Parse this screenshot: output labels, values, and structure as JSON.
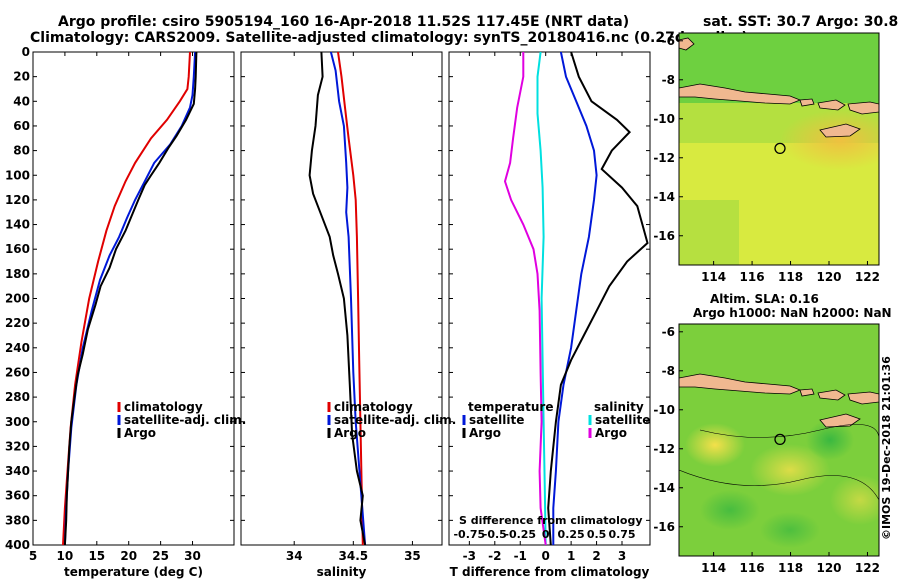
{
  "title": {
    "line1": "Argo profile: csiro 5905194_160 16-Apr-2018 11.52S 117.45E (NRT data)",
    "line2": "Climatology: CARS2009. Satellite-adjusted climatology: synTS_20180416.nc (0.27d earlier)"
  },
  "colors": {
    "climatology": "#e00000",
    "satellite": "#0018d8",
    "argo": "#000000",
    "satellite_s": "#00e0e0",
    "argo_s": "#e000e0",
    "land": "#f0b890"
  },
  "chart_data": [
    {
      "type": "line",
      "name": "temperature",
      "xlabel": "temperature (deg C)",
      "ylabel": "depth",
      "xlim": [
        5,
        36.5
      ],
      "ylim": [
        400,
        0
      ],
      "xticks": [
        "5",
        "10",
        "15",
        "20",
        "25",
        "30"
      ],
      "yticks": [
        "0",
        "20",
        "40",
        "60",
        "80",
        "100",
        "120",
        "140",
        "160",
        "180",
        "200",
        "220",
        "240",
        "260",
        "280",
        "300",
        "320",
        "340",
        "360",
        "380",
        "400"
      ],
      "legend": [
        "climatology",
        "satellite-adj. clim.",
        "Argo"
      ],
      "series": [
        {
          "name": "climatology",
          "points": [
            [
              29.6,
              0
            ],
            [
              29.4,
              20
            ],
            [
              29.2,
              30
            ],
            [
              28.0,
              40
            ],
            [
              26.0,
              55
            ],
            [
              23.5,
              70
            ],
            [
              21.0,
              90
            ],
            [
              19.5,
              105
            ],
            [
              17.8,
              125
            ],
            [
              16.5,
              145
            ],
            [
              15.2,
              170
            ],
            [
              13.8,
              200
            ],
            [
              12.6,
              235
            ],
            [
              11.6,
              270
            ],
            [
              10.9,
              305
            ],
            [
              10.4,
              340
            ],
            [
              10.0,
              370
            ],
            [
              9.7,
              400
            ]
          ]
        },
        {
          "name": "satellite",
          "points": [
            [
              30.4,
              0
            ],
            [
              30.2,
              20
            ],
            [
              30.0,
              35
            ],
            [
              29.6,
              45
            ],
            [
              28.3,
              60
            ],
            [
              26.5,
              75
            ],
            [
              24.0,
              90
            ],
            [
              22.5,
              105
            ],
            [
              21.0,
              120
            ],
            [
              19.7,
              135
            ],
            [
              18.5,
              150
            ],
            [
              17.0,
              165
            ],
            [
              15.5,
              185
            ],
            [
              14.2,
              210
            ],
            [
              12.8,
              240
            ],
            [
              11.8,
              270
            ],
            [
              11.0,
              305
            ],
            [
              10.5,
              340
            ],
            [
              10.2,
              370
            ],
            [
              10.0,
              400
            ]
          ]
        },
        {
          "name": "Argo",
          "points": [
            [
              30.6,
              0
            ],
            [
              30.5,
              20
            ],
            [
              30.4,
              30
            ],
            [
              30.2,
              42
            ],
            [
              29.0,
              55
            ],
            [
              27.5,
              68
            ],
            [
              26.2,
              78
            ],
            [
              24.8,
              90
            ],
            [
              23.5,
              100
            ],
            [
              22.5,
              108
            ],
            [
              21.5,
              120
            ],
            [
              20.3,
              135
            ],
            [
              19.5,
              145
            ],
            [
              18.0,
              160
            ],
            [
              17.0,
              175
            ],
            [
              15.6,
              190
            ],
            [
              14.8,
              205
            ],
            [
              13.6,
              225
            ],
            [
              12.8,
              245
            ],
            [
              12.0,
              262
            ],
            [
              11.5,
              280
            ],
            [
              11.0,
              300
            ],
            [
              10.7,
              320
            ],
            [
              10.5,
              340
            ],
            [
              10.3,
              360
            ],
            [
              10.2,
              380
            ],
            [
              10.0,
              400
            ]
          ]
        }
      ]
    },
    {
      "type": "line",
      "name": "salinity",
      "xlabel": "salinity",
      "xlim": [
        33.55,
        35.25
      ],
      "ylim": [
        400,
        0
      ],
      "xticks": [
        "34",
        "34.5",
        "35"
      ],
      "legend": [
        "climatology",
        "satellite-adj. clim.",
        "Argo"
      ],
      "series": [
        {
          "name": "climatology",
          "points": [
            [
              34.37,
              0
            ],
            [
              34.4,
              20
            ],
            [
              34.43,
              45
            ],
            [
              34.46,
              70
            ],
            [
              34.5,
              100
            ],
            [
              34.52,
              120
            ],
            [
              34.53,
              150
            ],
            [
              34.54,
              200
            ],
            [
              34.55,
              250
            ],
            [
              34.56,
              300
            ],
            [
              34.57,
              350
            ],
            [
              34.58,
              400
            ]
          ]
        },
        {
          "name": "satellite",
          "points": [
            [
              34.31,
              0
            ],
            [
              34.35,
              15
            ],
            [
              34.38,
              40
            ],
            [
              34.42,
              60
            ],
            [
              34.44,
              90
            ],
            [
              34.45,
              110
            ],
            [
              34.44,
              130
            ],
            [
              34.46,
              150
            ],
            [
              34.48,
              200
            ],
            [
              34.5,
              260
            ],
            [
              34.52,
              300
            ],
            [
              34.56,
              350
            ],
            [
              34.6,
              400
            ]
          ]
        },
        {
          "name": "Argo",
          "points": [
            [
              34.23,
              0
            ],
            [
              34.24,
              20
            ],
            [
              34.2,
              35
            ],
            [
              34.18,
              60
            ],
            [
              34.15,
              80
            ],
            [
              34.13,
              100
            ],
            [
              34.16,
              115
            ],
            [
              34.22,
              130
            ],
            [
              34.3,
              150
            ],
            [
              34.33,
              165
            ],
            [
              34.37,
              180
            ],
            [
              34.42,
              200
            ],
            [
              34.45,
              230
            ],
            [
              34.47,
              270
            ],
            [
              34.49,
              310
            ],
            [
              34.53,
              340
            ],
            [
              34.58,
              360
            ],
            [
              34.56,
              380
            ],
            [
              34.6,
              400
            ]
          ]
        }
      ]
    },
    {
      "type": "line",
      "name": "difference",
      "xlabel": "T difference from climatology",
      "annotation": "S difference from climatology",
      "xlim": [
        -3.8,
        4.1
      ],
      "ylim": [
        400,
        0
      ],
      "xticks": [
        "-3",
        "-2",
        "-1",
        "0",
        "1",
        "2",
        "3"
      ],
      "s_ticks": [
        "-0.75",
        "-0.5",
        "-0.25",
        "0",
        "0.25",
        "0.5",
        "0.75"
      ],
      "legend_t_header": "temperature",
      "legend_s_header": "salinity",
      "legend_t": [
        "satellite",
        "Argo"
      ],
      "legend_s": [
        "satellite",
        "Argo"
      ],
      "series": [
        {
          "name": "T satellite",
          "points": [
            [
              0.6,
              0
            ],
            [
              0.8,
              20
            ],
            [
              1.2,
              40
            ],
            [
              1.6,
              60
            ],
            [
              1.9,
              80
            ],
            [
              2.0,
              100
            ],
            [
              1.9,
              120
            ],
            [
              1.7,
              150
            ],
            [
              1.4,
              180
            ],
            [
              1.2,
              210
            ],
            [
              1.0,
              240
            ],
            [
              0.7,
              270
            ],
            [
              0.5,
              300
            ],
            [
              0.4,
              340
            ],
            [
              0.3,
              370
            ],
            [
              0.3,
              400
            ]
          ]
        },
        {
          "name": "T Argo",
          "points": [
            [
              1.0,
              0
            ],
            [
              1.3,
              20
            ],
            [
              1.8,
              40
            ],
            [
              2.8,
              55
            ],
            [
              3.3,
              65
            ],
            [
              2.6,
              80
            ],
            [
              2.2,
              95
            ],
            [
              3.0,
              110
            ],
            [
              3.6,
              125
            ],
            [
              3.8,
              140
            ],
            [
              4.0,
              155
            ],
            [
              3.2,
              170
            ],
            [
              2.5,
              190
            ],
            [
              2.0,
              210
            ],
            [
              1.5,
              230
            ],
            [
              1.0,
              250
            ],
            [
              0.6,
              270
            ],
            [
              0.4,
              300
            ],
            [
              0.2,
              340
            ],
            [
              0.1,
              370
            ],
            [
              0.2,
              400
            ]
          ]
        },
        {
          "name": "S satellite",
          "points": [
            [
              -0.05,
              0
            ],
            [
              -0.08,
              20
            ],
            [
              -0.08,
              50
            ],
            [
              -0.05,
              80
            ],
            [
              -0.03,
              110
            ],
            [
              -0.02,
              150
            ],
            [
              -0.04,
              200
            ],
            [
              -0.03,
              250
            ],
            [
              -0.02,
              300
            ],
            [
              -0.01,
              350
            ],
            [
              0.0,
              400
            ]
          ]
        },
        {
          "name": "S Argo",
          "points": [
            [
              -0.22,
              0
            ],
            [
              -0.22,
              20
            ],
            [
              -0.28,
              45
            ],
            [
              -0.32,
              70
            ],
            [
              -0.35,
              90
            ],
            [
              -0.4,
              105
            ],
            [
              -0.34,
              120
            ],
            [
              -0.22,
              140
            ],
            [
              -0.12,
              160
            ],
            [
              -0.08,
              180
            ],
            [
              -0.06,
              210
            ],
            [
              -0.05,
              260
            ],
            [
              -0.04,
              300
            ],
            [
              -0.06,
              340
            ],
            [
              -0.05,
              370
            ],
            [
              0.0,
              400
            ]
          ]
        }
      ]
    },
    {
      "type": "heatmap",
      "name": "sst-map",
      "title": "sat. SST: 30.7 Argo: 30.8",
      "xticks": [
        "114",
        "116",
        "118",
        "120",
        "122"
      ],
      "yticks": [
        "-6",
        "-8",
        "-10",
        "-12",
        "-14",
        "-16"
      ],
      "xlim": [
        112.2,
        122.6
      ],
      "ylim": [
        -17.5,
        -5.6
      ],
      "marker": [
        117.45,
        -11.52
      ]
    },
    {
      "type": "heatmap",
      "name": "sla-map",
      "title": "Altim. SLA: 0.16",
      "subtitle": "Argo h1000: NaN h2000: NaN",
      "xticks": [
        "114",
        "116",
        "118",
        "120",
        "122"
      ],
      "yticks": [
        "-6",
        "-8",
        "-10",
        "-12",
        "-14",
        "-16"
      ],
      "xlim": [
        112.2,
        122.6
      ],
      "ylim": [
        -17.5,
        -5.6
      ],
      "marker": [
        117.45,
        -11.52
      ]
    }
  ],
  "watermark": "©IMOS 19-Dec-2018 21:01:36"
}
